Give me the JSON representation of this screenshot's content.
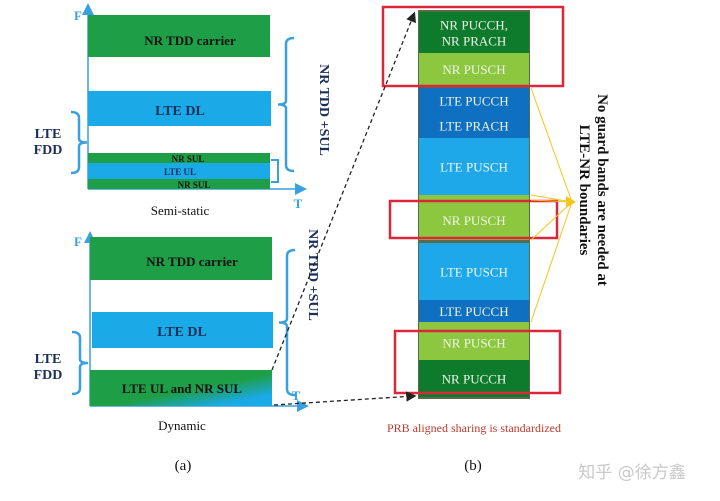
{
  "colors": {
    "nr_green": "#1f9e48",
    "lte_blue": "#1aaae8",
    "axis_blue": "#3aa0e0",
    "label_navy": "#1b2f5a",
    "nr_dark_green": "#0d7a2c",
    "nr_light_green": "#8dc63f",
    "lte_dark_blue": "#0f6fc0",
    "lte_light_blue": "#1ea8ea",
    "red_box": "#d8283a",
    "yellow_arrow": "#f5c518",
    "caption_red": "#c0392b"
  },
  "panel_a": {
    "label": "(a)",
    "axis_f": "F",
    "axis_t": "T",
    "semi_static": {
      "caption": "Semi-static",
      "nr_tdd": "NR TDD carrier",
      "lte_dl": "LTE DL",
      "nr_sul_top": "NR SUL",
      "lte_ul": "LTE UL",
      "nr_sul_bottom": "NR SUL",
      "lte_fdd_line1": "LTE",
      "lte_fdd_line2": "FDD",
      "nr_tdd_sul": "NR TDD +SUL"
    },
    "dynamic": {
      "caption": "Dynamic",
      "nr_tdd": "NR TDD carrier",
      "lte_dl": "LTE DL",
      "shared": "LTE UL and NR SUL",
      "lte_fdd_line1": "LTE",
      "lte_fdd_line2": "FDD",
      "nr_tdd_sul": "NR TDD +SUL"
    }
  },
  "panel_b": {
    "label": "(b)",
    "segments": [
      {
        "lines": [
          "NR PUCCH,",
          "NR PRACH"
        ],
        "kind": "nr_dark"
      },
      {
        "lines": [
          "NR PUSCH"
        ],
        "kind": "nr_light"
      },
      {
        "lines": [
          "LTE PUCCH"
        ],
        "kind": "lte_dark"
      },
      {
        "lines": [
          "LTE PRACH"
        ],
        "kind": "lte_dark"
      },
      {
        "lines": [
          "LTE PUSCH"
        ],
        "kind": "lte_light"
      },
      {
        "lines": [
          "NR PUSCH"
        ],
        "kind": "nr_light"
      },
      {
        "lines": [
          "LTE PUSCH"
        ],
        "kind": "lte_light"
      },
      {
        "lines": [
          "LTE PUCCH"
        ],
        "kind": "lte_dark"
      },
      {
        "lines": [
          "NR PUSCH"
        ],
        "kind": "nr_light"
      },
      {
        "lines": [
          "NR PUCCH"
        ],
        "kind": "nr_dark"
      }
    ],
    "annotation_line1": "No guard bands are needed at",
    "annotation_line2": "LTE-NR boundaries",
    "caption": "PRB aligned sharing is standardized"
  },
  "watermark": "知乎 @徐方鑫"
}
